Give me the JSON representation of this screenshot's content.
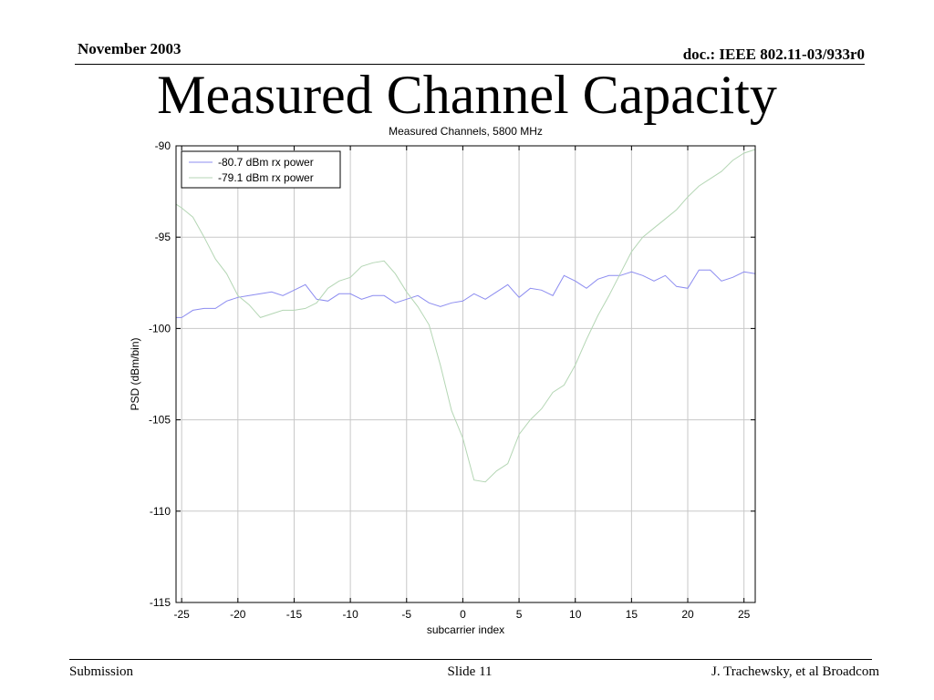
{
  "header": {
    "date": "November 2003",
    "doc": "doc.: IEEE 802.11-03/933r0"
  },
  "slide_title": "Measured Channel Capacity",
  "footer": {
    "left": "Submission",
    "center": "Slide 11",
    "right": "J. Trachewsky, et al Broadcom"
  },
  "chart_data": {
    "type": "line",
    "title": "Measured Channels, 5800 MHz",
    "xlabel": "subcarrier index",
    "ylabel": "PSD (dBm/bin)",
    "xlim": [
      -25.5,
      26
    ],
    "ylim": [
      -115,
      -90
    ],
    "xticks": [
      -25,
      -20,
      -15,
      -10,
      -5,
      0,
      5,
      10,
      15,
      20,
      25
    ],
    "yticks": [
      -90,
      -95,
      -100,
      -105,
      -110,
      -115
    ],
    "grid": true,
    "legend": "top-left",
    "x": [
      -26,
      -25,
      -24,
      -23,
      -22,
      -21,
      -20,
      -19,
      -18,
      -17,
      -16,
      -15,
      -14,
      -13,
      -12,
      -11,
      -10,
      -9,
      -8,
      -7,
      -6,
      -5,
      -4,
      -3,
      -2,
      -1,
      0,
      1,
      2,
      3,
      4,
      5,
      6,
      7,
      8,
      9,
      10,
      11,
      12,
      13,
      14,
      15,
      16,
      17,
      18,
      19,
      20,
      21,
      22,
      23,
      24,
      25,
      26
    ],
    "series": [
      {
        "name": "-80.7 dBm rx power",
        "color": "#8c8cf0",
        "values": [
          -99.4,
          -99.4,
          -99.0,
          -98.9,
          -98.9,
          -98.5,
          -98.3,
          -98.2,
          -98.1,
          -98.0,
          -98.2,
          -97.9,
          -97.6,
          -98.4,
          -98.5,
          -98.1,
          -98.1,
          -98.4,
          -98.2,
          -98.2,
          -98.6,
          -98.4,
          -98.2,
          -98.6,
          -98.8,
          -98.6,
          -98.5,
          -98.1,
          -98.4,
          -98.0,
          -97.6,
          -98.3,
          -97.8,
          -97.9,
          -98.2,
          -97.1,
          -97.4,
          -97.8,
          -97.3,
          -97.1,
          -97.1,
          -96.9,
          -97.1,
          -97.4,
          -97.1,
          -97.7,
          -97.8,
          -96.8,
          -96.8,
          -97.4,
          -97.2,
          -96.9,
          -97.0
        ]
      },
      {
        "name": "-79.1 dBm rx power",
        "color": "#b4d6b4",
        "values": [
          -93.2,
          -93.4,
          -93.9,
          -95.0,
          -96.2,
          -97.0,
          -98.2,
          -98.7,
          -99.4,
          -99.2,
          -99.0,
          -99.0,
          -98.9,
          -98.6,
          -97.8,
          -97.4,
          -97.2,
          -96.6,
          -96.4,
          -96.3,
          -97.0,
          -98.0,
          -98.8,
          -99.8,
          -102.0,
          -104.5,
          -106.0,
          -108.3,
          -108.4,
          -107.8,
          -107.4,
          -105.8,
          -105.0,
          -104.4,
          -103.5,
          -103.1,
          -102.0,
          -100.6,
          -99.3,
          -98.2,
          -97.0,
          -95.8,
          -95.0,
          -94.5,
          -94.0,
          -93.5,
          -92.8,
          -92.2,
          -91.8,
          -91.4,
          -90.8,
          -90.4,
          -90.2
        ]
      }
    ]
  }
}
